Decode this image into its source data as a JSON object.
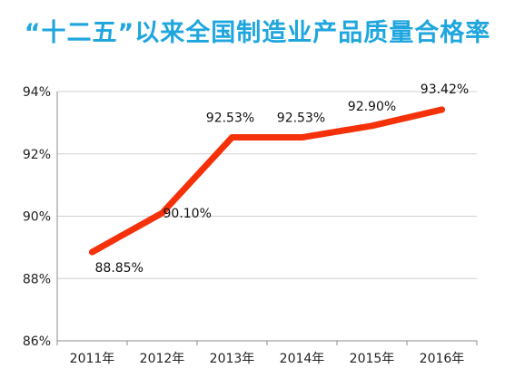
{
  "chart_data": {
    "type": "line",
    "title": "“十二五”以来全国制造业产品质量合格率",
    "xlabel": "",
    "ylabel": "",
    "categories": [
      "2011年",
      "2012年",
      "2013年",
      "2014年",
      "2015年",
      "2016年"
    ],
    "series": [
      {
        "values": [
          88.85,
          90.1,
          92.53,
          92.53,
          92.9,
          93.42
        ],
        "data_labels": [
          "88.85%",
          "90.10%",
          "92.53%",
          "92.53%",
          "92.90%",
          "93.42%"
        ],
        "color": "#f5310a"
      }
    ],
    "ylim": [
      86,
      94
    ],
    "yticks": [
      86,
      88,
      90,
      92,
      94
    ],
    "ytick_labels": [
      "86%",
      "88%",
      "90%",
      "92%",
      "94%"
    ],
    "grid": true,
    "legend": "none"
  }
}
